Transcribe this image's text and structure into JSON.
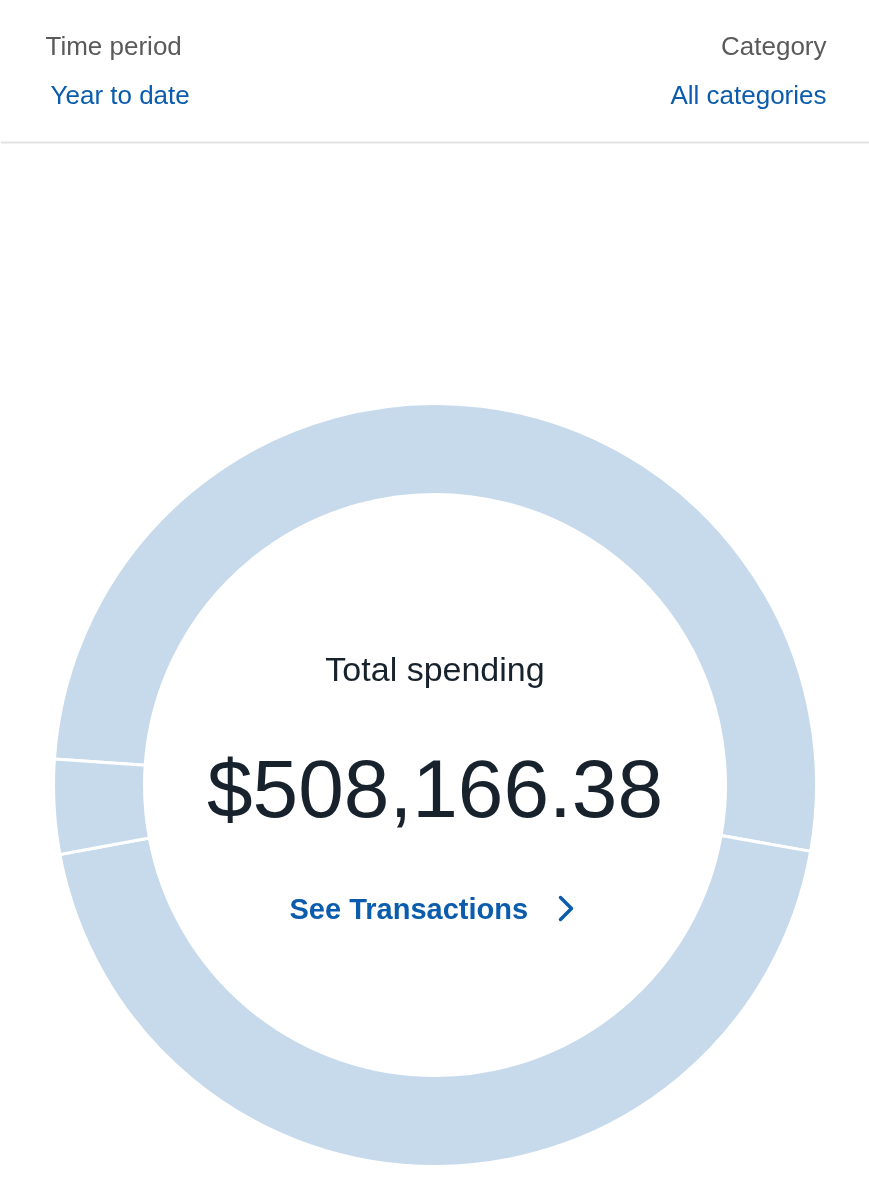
{
  "chart_data": {
    "type": "donut",
    "title": "Total spending",
    "subtitle": "$508,166.38",
    "categories": [
      null,
      null,
      null
    ],
    "values": [
      51.7,
      44.3,
      4.0
    ],
    "colors": [
      "#c7daec",
      "#c7daec",
      "#c7daec"
    ],
    "annotations": [
      "See Transactions",
      "Time period",
      "Year to date",
      "Category",
      "All categories"
    ]
  }
}
